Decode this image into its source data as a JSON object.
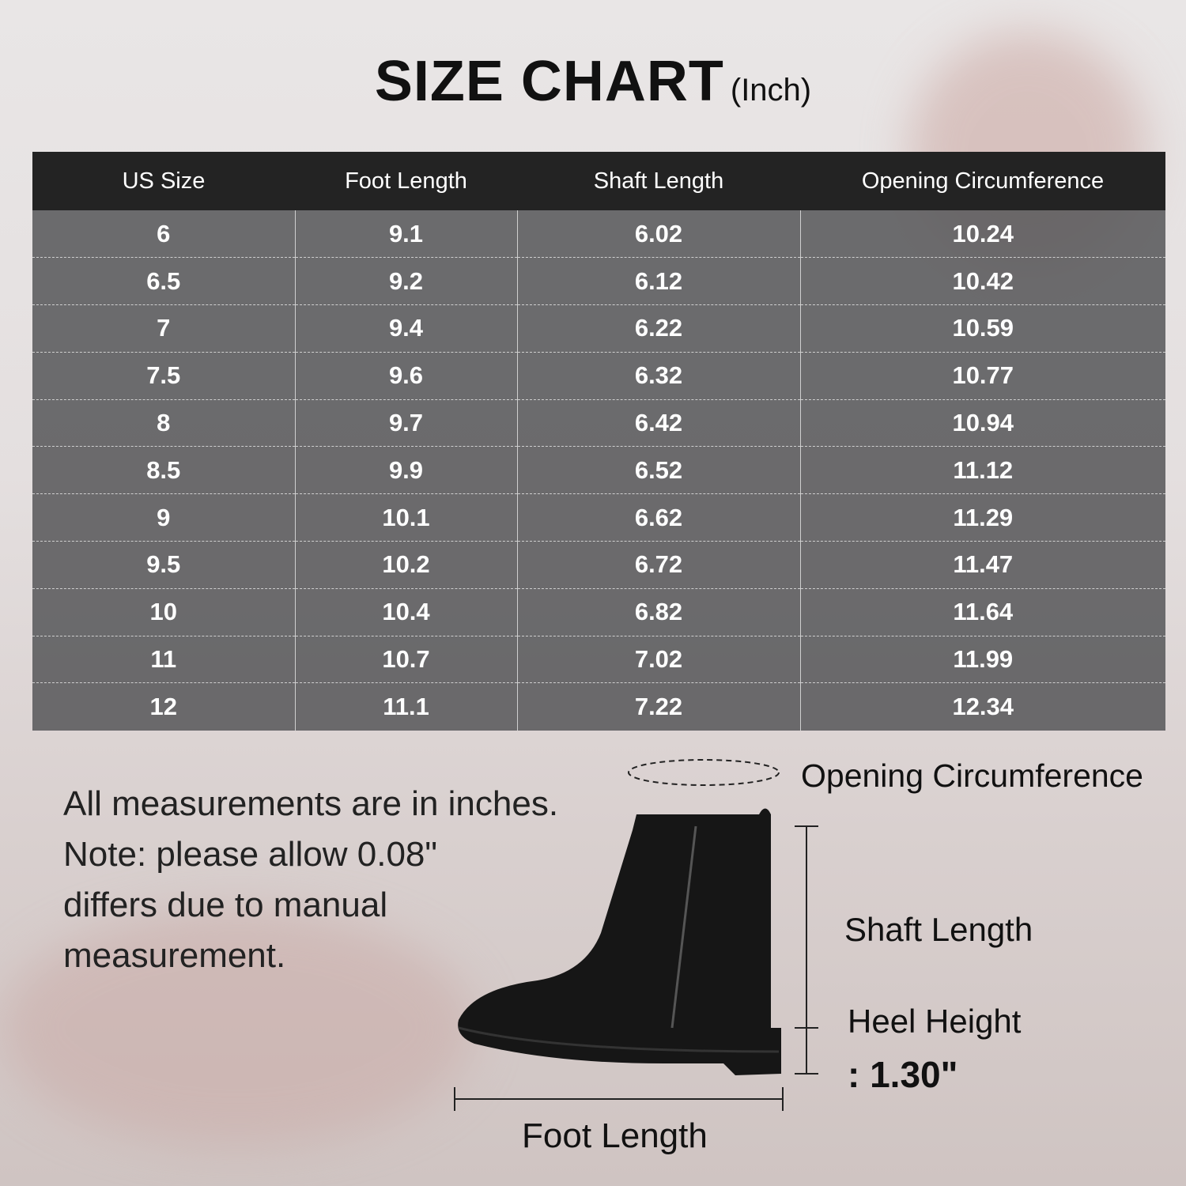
{
  "title": {
    "main": "SIZE CHART",
    "unit": "(Inch)"
  },
  "table": {
    "headers": [
      "US Size",
      "Foot Length",
      "Shaft Length",
      "Opening Circumference"
    ],
    "rows": [
      [
        "6",
        "9.1",
        "6.02",
        "10.24"
      ],
      [
        "6.5",
        "9.2",
        "6.12",
        "10.42"
      ],
      [
        "7",
        "9.4",
        "6.22",
        "10.59"
      ],
      [
        "7.5",
        "9.6",
        "6.32",
        "10.77"
      ],
      [
        "8",
        "9.7",
        "6.42",
        "10.94"
      ],
      [
        "8.5",
        "9.9",
        "6.52",
        "11.12"
      ],
      [
        "9",
        "10.1",
        "6.62",
        "11.29"
      ],
      [
        "9.5",
        "10.2",
        "6.72",
        "11.47"
      ],
      [
        "10",
        "10.4",
        "6.82",
        "11.64"
      ],
      [
        "11",
        "10.7",
        "7.02",
        "11.99"
      ],
      [
        "12",
        "11.1",
        "7.22",
        "12.34"
      ]
    ]
  },
  "notes": [
    "All measurements are in inches.",
    "Note: please allow 0.08\"",
    "differs due to manual",
    "measurement."
  ],
  "diagram": {
    "opening": "Opening Circumference",
    "shaft": "Shaft Length",
    "heel": "Heel Height",
    "heel_value": ": 1.30\"",
    "foot": "Foot Length"
  }
}
